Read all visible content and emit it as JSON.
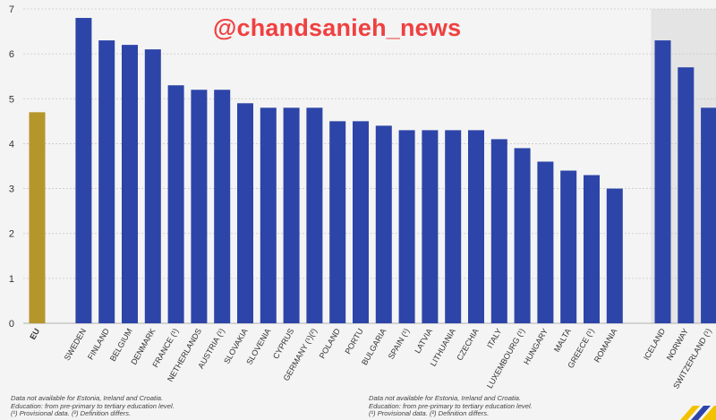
{
  "watermark": "@chandsanieh_news",
  "notes": {
    "line1": "Data not available for Estonia, Ireland and Croatia.",
    "line2": "Education: from pre-primary to tertiary education level.",
    "line3": "(¹) Provisional data. (²) Definition differs."
  },
  "colors": {
    "eu": "#b5962a",
    "country": "#2d45a8",
    "panel": "#e4e4e4",
    "grid": "#c8c8c8"
  },
  "chart_data": {
    "type": "bar",
    "title": "",
    "xlabel": "",
    "ylabel": "",
    "ylim": [
      0,
      7
    ],
    "yticks": [
      0,
      1,
      2,
      3,
      4,
      5,
      6,
      7
    ],
    "grid": true,
    "categories": [
      "EU",
      "SWEDEN",
      "FINLAND",
      "BELGIUM",
      "DENMARK",
      "FRANCE (¹)",
      "NETHERLANDS",
      "AUSTRIA (¹)",
      "SLOVAKIA",
      "SLOVENIA",
      "CYPRUS",
      "GERMANY (¹)(²)",
      "POLAND",
      "PORTU",
      "BULGARIA",
      "SPAIN (¹)",
      "LATVIA",
      "LITHUANIA",
      "CZECHIA",
      "ITALY",
      "LUXEMBOURG (¹)",
      "HUNGARY",
      "MALTA",
      "GREECE (¹)",
      "ROMANIA",
      "ICELAND",
      "NORWAY",
      "SWITZERLAND (¹)"
    ],
    "values": [
      4.7,
      6.8,
      6.3,
      6.2,
      6.1,
      5.3,
      5.2,
      5.2,
      4.9,
      4.8,
      4.8,
      4.8,
      4.5,
      4.5,
      4.4,
      4.3,
      4.3,
      4.3,
      4.3,
      4.1,
      3.9,
      3.6,
      3.4,
      3.3,
      3.0,
      6.3,
      5.7,
      4.8
    ],
    "groups": [
      "eu",
      "member",
      "member",
      "member",
      "member",
      "member",
      "member",
      "member",
      "member",
      "member",
      "member",
      "member",
      "member",
      "member",
      "member",
      "member",
      "member",
      "member",
      "member",
      "member",
      "member",
      "member",
      "member",
      "member",
      "member",
      "efta",
      "efta",
      "efta"
    ]
  }
}
